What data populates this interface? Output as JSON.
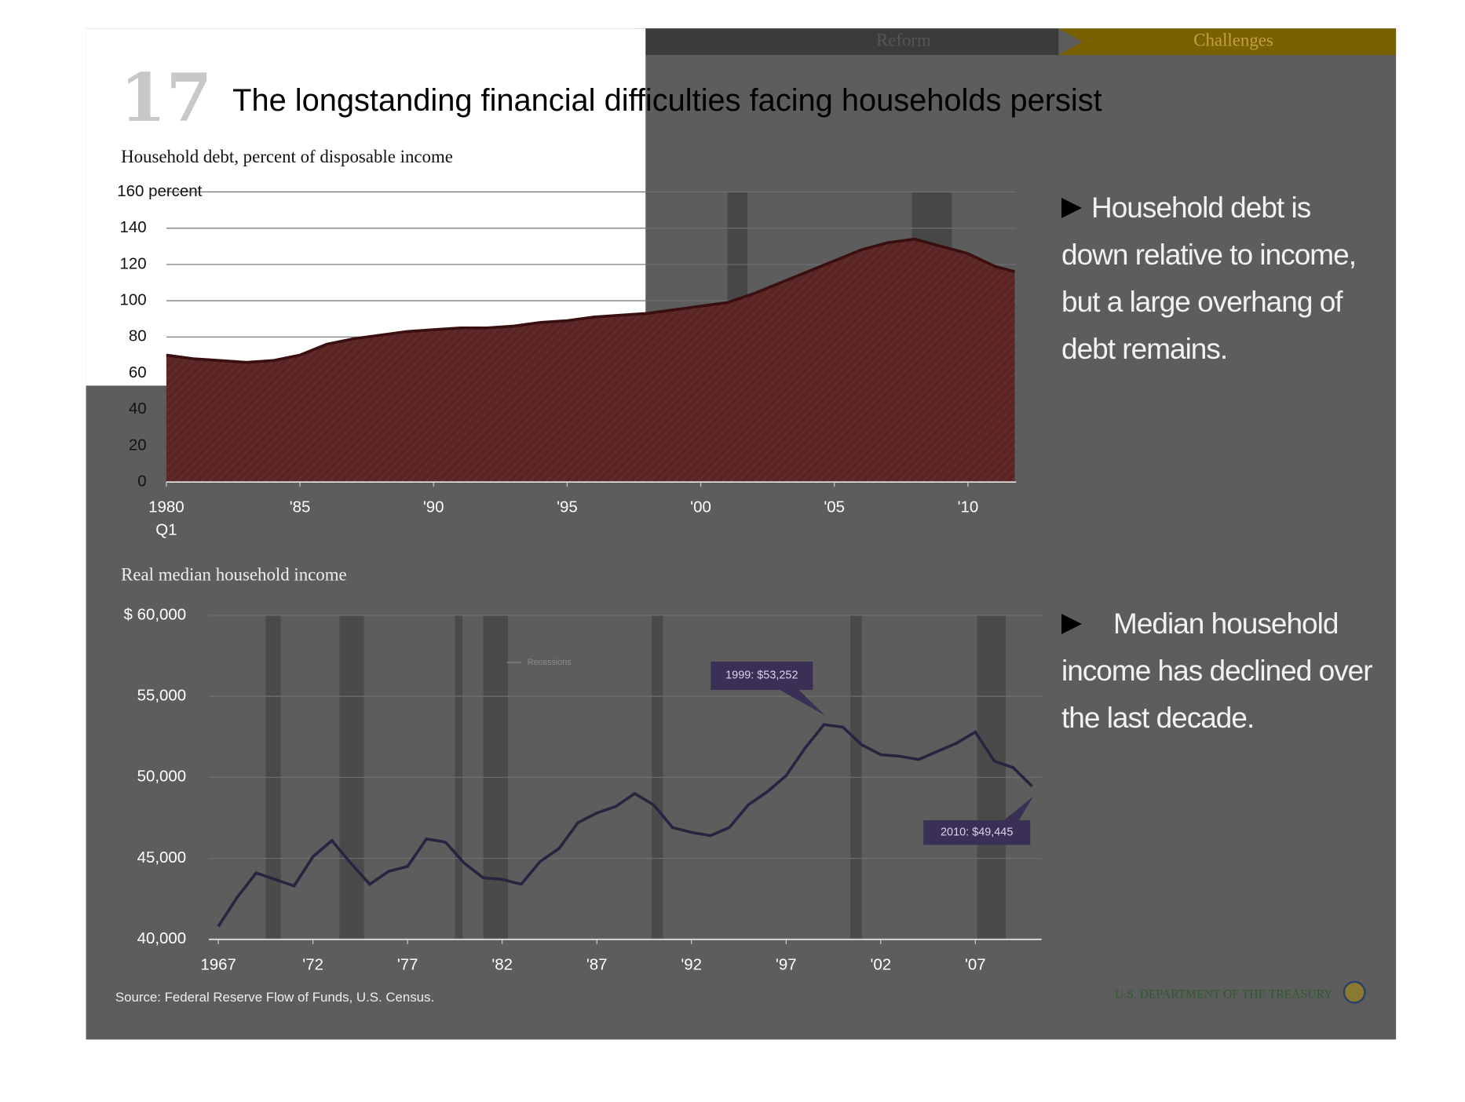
{
  "nav": [
    "Reform",
    "Challenges"
  ],
  "slide_number": "17",
  "title": "The longstanding financial difficulties facing households persist",
  "notes": [
    "Household debt is down relative to income, but a large overhang of debt remains.",
    "Median household income has declined over the last decade."
  ],
  "source": "Source: Federal Reserve Flow of Funds, U.S. Census.",
  "footer": "U.S. DEPARTMENT OF THE TREASURY",
  "chart_data": [
    {
      "type": "area",
      "title": "Household debt, percent of disposable income",
      "x": [
        1980,
        1981,
        1982,
        1983,
        1984,
        1985,
        1986,
        1987,
        1988,
        1989,
        1990,
        1991,
        1992,
        1993,
        1994,
        1995,
        1996,
        1997,
        1998,
        1999,
        2000,
        2001,
        2002,
        2003,
        2004,
        2005,
        2006,
        2007,
        2008,
        2009,
        2010,
        2011,
        2011.75
      ],
      "values": [
        70,
        68,
        67,
        66,
        67,
        70,
        76,
        79,
        81,
        83,
        84,
        85,
        85,
        86,
        88,
        89,
        91,
        92,
        93,
        95,
        97,
        99,
        104,
        110,
        116,
        122,
        128,
        132,
        134,
        130,
        126,
        119,
        116
      ],
      "color": "#5a2525",
      "line_color": "#3a0f0f",
      "recessions": [
        [
          2001,
          2001.75
        ],
        [
          2007.9,
          2009.4
        ]
      ],
      "xlim": [
        1980,
        2011.8
      ],
      "ylim": [
        0,
        160
      ],
      "xticks": [
        {
          "value": 1980,
          "label": "1980 Q1"
        },
        {
          "value": 1985,
          "label": "'85"
        },
        {
          "value": 1990,
          "label": "'90"
        },
        {
          "value": 1995,
          "label": "'95"
        },
        {
          "value": 2000,
          "label": "'00"
        },
        {
          "value": 2005,
          "label": "'05"
        },
        {
          "value": 2010,
          "label": "'10"
        }
      ],
      "yticks": [
        0,
        20,
        40,
        60,
        80,
        100,
        120,
        140,
        {
          "value": 160,
          "label": "160 percent"
        }
      ],
      "grid": true
    },
    {
      "type": "line",
      "title": "Real median household income",
      "legend_label": "Recessions",
      "x": [
        1967,
        1968,
        1969,
        1970,
        1971,
        1972,
        1973,
        1974,
        1975,
        1976,
        1977,
        1978,
        1979,
        1980,
        1981,
        1982,
        1983,
        1984,
        1985,
        1986,
        1987,
        1988,
        1989,
        1990,
        1991,
        1992,
        1993,
        1994,
        1995,
        1996,
        1997,
        1998,
        1999,
        2000,
        2001,
        2002,
        2003,
        2004,
        2005,
        2006,
        2007,
        2008,
        2009,
        2010
      ],
      "values": [
        40800,
        42600,
        44100,
        43700,
        43300,
        45100,
        46100,
        44700,
        43400,
        44200,
        44500,
        46200,
        46000,
        44700,
        43800,
        43700,
        43400,
        44800,
        45600,
        47200,
        47800,
        48200,
        49000,
        48300,
        46900,
        46600,
        46400,
        46900,
        48300,
        49100,
        50100,
        51800,
        53252,
        53100,
        52000,
        51400,
        51300,
        51100,
        51600,
        52100,
        52800,
        51000,
        50600,
        49445
      ],
      "color": "#2a2340",
      "recessions": [
        [
          1969.5,
          1970.3
        ],
        [
          1973.4,
          1974.7
        ],
        [
          1979.5,
          1979.9
        ],
        [
          1981,
          1982.3
        ],
        [
          1989.9,
          1990.5
        ],
        [
          2000.4,
          2001
        ],
        [
          2007.1,
          2008.6
        ]
      ],
      "annotations": [
        "1999: $53,252",
        "2010: $49,445"
      ],
      "xlim": [
        1966.5,
        2010.5
      ],
      "ylim": [
        40000,
        60000
      ],
      "xticks": [
        1967,
        {
          "value": 1972,
          "label": "'72"
        },
        {
          "value": 1977,
          "label": "'77"
        },
        {
          "value": 1982,
          "label": "'82"
        },
        {
          "value": 1987,
          "label": "'87"
        },
        {
          "value": 1992,
          "label": "'92"
        },
        {
          "value": 1997,
          "label": "'97"
        },
        {
          "value": 2002,
          "label": "'02"
        },
        {
          "value": 2007,
          "label": "'07"
        }
      ],
      "yticks": [
        {
          "value": 40000,
          "label": "40,000"
        },
        {
          "value": 45000,
          "label": "45,000"
        },
        {
          "value": 50000,
          "label": "50,000"
        },
        {
          "value": 55000,
          "label": "55,000"
        },
        {
          "value": 60000,
          "label": "$ 60,000"
        }
      ],
      "grid": true
    }
  ]
}
